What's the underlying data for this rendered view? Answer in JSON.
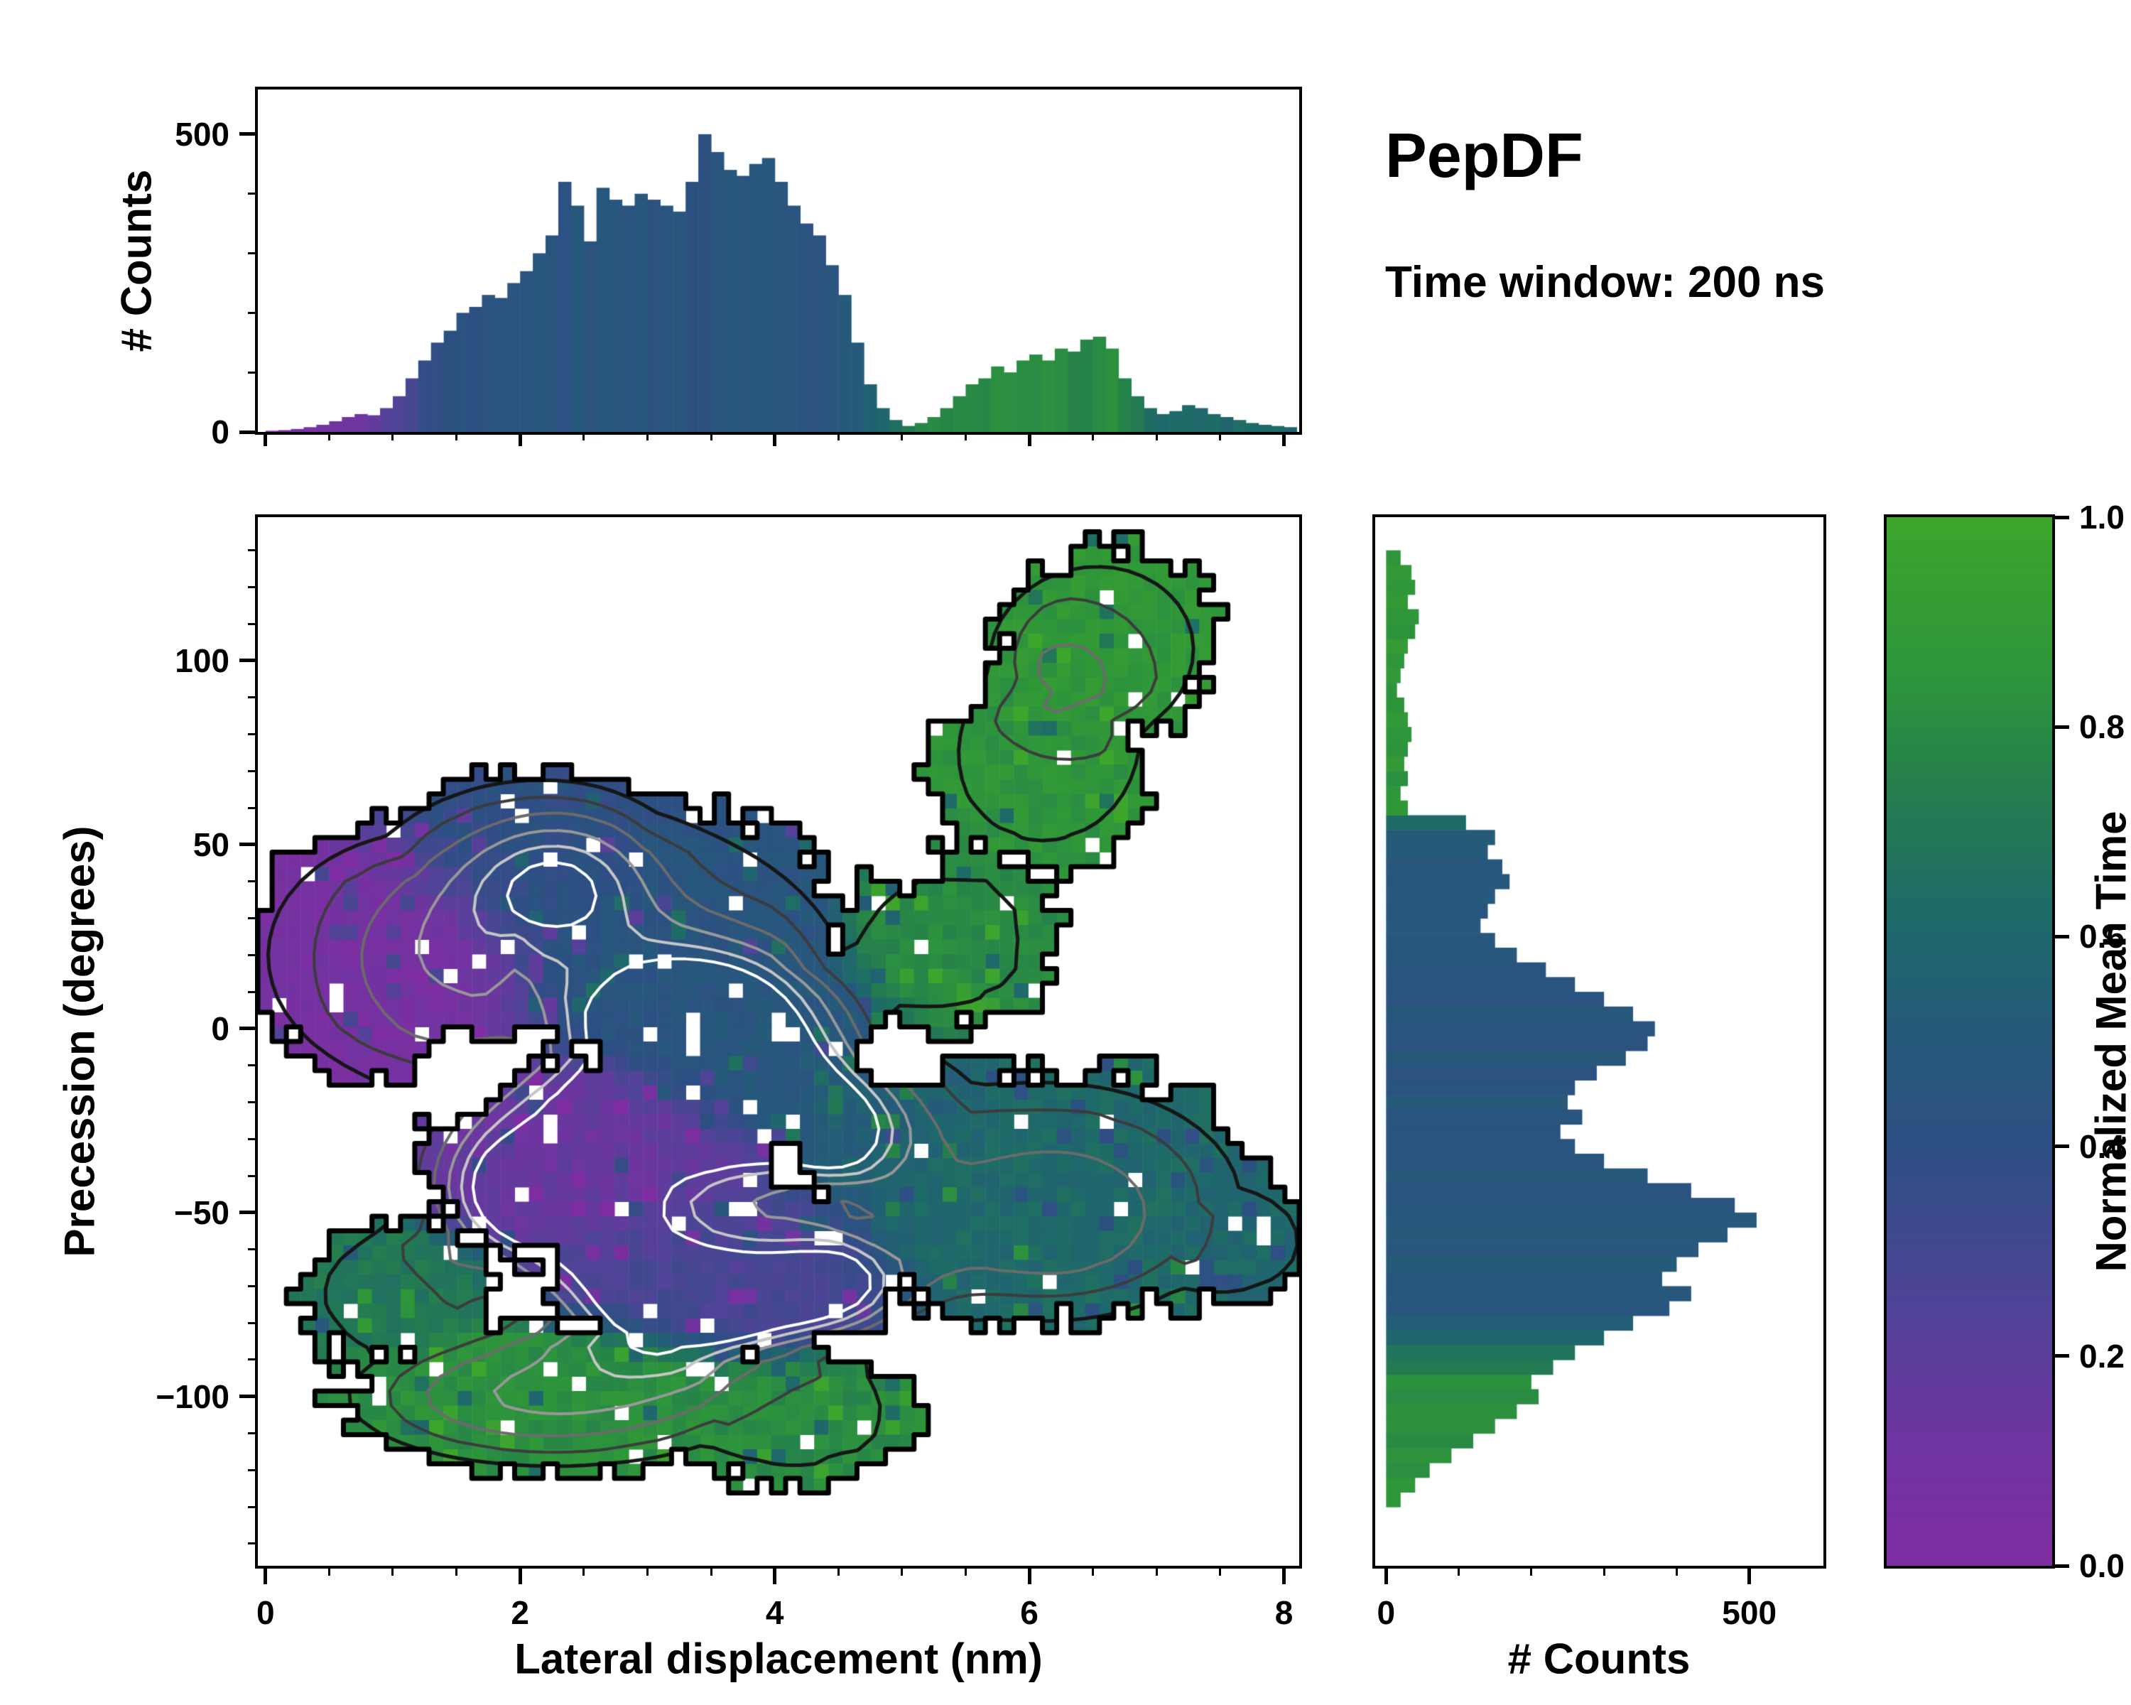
{
  "annotations": {
    "dataset_label": "PepDF",
    "time_window_label": "Time window: 200 ns"
  },
  "colormap": {
    "label": "Normalized Mean Time",
    "ticks": [
      "0.0",
      "0.2",
      "0.4",
      "0.6",
      "0.8",
      "1.0"
    ],
    "range": [
      0,
      1
    ],
    "stops": [
      [
        0.0,
        "#7f2da2"
      ],
      [
        0.12,
        "#6f35a0"
      ],
      [
        0.25,
        "#4f4497"
      ],
      [
        0.4,
        "#2d4f83"
      ],
      [
        0.52,
        "#255b79"
      ],
      [
        0.62,
        "#1e6a69"
      ],
      [
        0.72,
        "#237a52"
      ],
      [
        0.85,
        "#2e953a"
      ],
      [
        1.0,
        "#3ea52c"
      ]
    ]
  },
  "chart_data": [
    {
      "id": "top_histogram",
      "type": "bar",
      "orientation": "vertical",
      "title": "",
      "xlabel": "",
      "ylabel": "# Counts",
      "x_range": [
        -0.06,
        8.12
      ],
      "y_range": [
        0,
        575
      ],
      "yticks": [
        0,
        500
      ],
      "y_minor_step": 100,
      "xticks": [
        0,
        2,
        4,
        6,
        8
      ],
      "x_minor_step": 0.5,
      "bin_start": 0.0,
      "bin_width": 0.1,
      "values": [
        2,
        3,
        5,
        8,
        12,
        18,
        25,
        30,
        28,
        40,
        60,
        90,
        120,
        150,
        170,
        200,
        210,
        230,
        225,
        250,
        270,
        300,
        330,
        420,
        380,
        320,
        410,
        390,
        380,
        400,
        390,
        380,
        370,
        420,
        500,
        470,
        440,
        430,
        450,
        460,
        420,
        380,
        350,
        330,
        280,
        230,
        150,
        80,
        40,
        20,
        10,
        15,
        25,
        40,
        60,
        80,
        90,
        110,
        100,
        120,
        130,
        120,
        140,
        135,
        155,
        160,
        140,
        90,
        60,
        40,
        30,
        35,
        45,
        40,
        30,
        25,
        20,
        15,
        12,
        10,
        8
      ],
      "color_by": "normalized_mean_time",
      "color_profile": [
        [
          0,
          0.05
        ],
        [
          0.7,
          0.12
        ],
        [
          1.3,
          0.38
        ],
        [
          1.9,
          0.45
        ],
        [
          4.5,
          0.46
        ],
        [
          4.9,
          0.62
        ],
        [
          5.2,
          0.78
        ],
        [
          6.7,
          0.8
        ],
        [
          7.0,
          0.62
        ],
        [
          8.1,
          0.6
        ]
      ]
    },
    {
      "id": "precession_vs_displacement_map",
      "type": "heatmap",
      "title": "",
      "xlabel": "Lateral displacement (nm)",
      "ylabel": "Precession (degrees)",
      "x_range": [
        -0.06,
        8.12
      ],
      "y_range": [
        -146,
        139
      ],
      "xticks": [
        0,
        2,
        4,
        6,
        8
      ],
      "yticks": [
        -100,
        -50,
        0,
        50,
        100
      ],
      "x_minor_step": 0.5,
      "y_minor_step": 10,
      "grid_nx": 73,
      "grid_ny": 72,
      "value_name": "normalized_mean_time",
      "regions": [
        {
          "name": "purple-upper-left",
          "x": 1.0,
          "y": 20,
          "rx": 1.35,
          "ry": 38,
          "value": 0.07
        },
        {
          "name": "blue-upper",
          "x": 2.1,
          "y": 45,
          "rx": 1.4,
          "ry": 28,
          "value": 0.4
        },
        {
          "name": "blue-center",
          "x": 3.1,
          "y": 25,
          "rx": 1.6,
          "ry": 40,
          "value": 0.45
        },
        {
          "name": "purple-mid",
          "x": 2.6,
          "y": -35,
          "rx": 1.5,
          "ry": 30,
          "value": 0.15
        },
        {
          "name": "blue-core",
          "x": 3.9,
          "y": -5,
          "rx": 1.2,
          "ry": 30,
          "value": 0.48
        },
        {
          "name": "indigo-lower",
          "x": 3.6,
          "y": -65,
          "rx": 1.6,
          "ry": 28,
          "value": 0.28
        },
        {
          "name": "teal-right",
          "x": 6.1,
          "y": -45,
          "rx": 1.9,
          "ry": 38,
          "value": 0.62
        },
        {
          "name": "teal-bridge",
          "x": 4.9,
          "y": -25,
          "rx": 0.9,
          "ry": 25,
          "value": 0.55
        },
        {
          "name": "green-mid",
          "x": 5.4,
          "y": 25,
          "rx": 0.95,
          "ry": 28,
          "value": 0.8
        },
        {
          "name": "green-arm",
          "x": 6.1,
          "y": 70,
          "rx": 0.95,
          "ry": 30,
          "value": 0.85
        },
        {
          "name": "green-arm-top",
          "x": 6.6,
          "y": 105,
          "rx": 0.95,
          "ry": 28,
          "value": 0.87
        },
        {
          "name": "green-bottom",
          "x": 2.3,
          "y": -100,
          "rx": 1.9,
          "ry": 23,
          "value": 0.82
        },
        {
          "name": "green-bottom-right",
          "x": 4.2,
          "y": -106,
          "rx": 1.0,
          "ry": 20,
          "value": 0.8
        },
        {
          "name": "green-left-edge",
          "x": 1.0,
          "y": -72,
          "rx": 0.85,
          "ry": 20,
          "value": 0.7
        },
        {
          "name": "teal-tip",
          "x": 7.6,
          "y": -58,
          "rx": 0.75,
          "ry": 18,
          "value": 0.6
        }
      ],
      "voids": [
        {
          "x": 1.55,
          "y": -12,
          "rx": 0.38,
          "ry": 11
        },
        {
          "x": 5.0,
          "y": -8,
          "rx": 0.35,
          "ry": 9
        },
        {
          "x": 5.05,
          "y": 45,
          "rx": 0.25,
          "ry": 7
        }
      ],
      "density_peaks": [
        {
          "x": 3.5,
          "y": -5,
          "sx": 0.9,
          "sy": 26,
          "amp": 0.85
        },
        {
          "x": 2.3,
          "y": 40,
          "sx": 0.8,
          "sy": 20,
          "amp": 0.55
        },
        {
          "x": 2.15,
          "y": -48,
          "sx": 0.9,
          "sy": 22,
          "amp": 0.75
        },
        {
          "x": 3.3,
          "y": -75,
          "sx": 0.9,
          "sy": 18,
          "amp": 0.8
        },
        {
          "x": 4.35,
          "y": -28,
          "sx": 0.7,
          "sy": 16,
          "amp": 0.65
        },
        {
          "x": 4.5,
          "y": -70,
          "sx": 0.7,
          "sy": 15,
          "amp": 0.6
        },
        {
          "x": 2.9,
          "y": -15,
          "sx": 1.4,
          "sy": 40,
          "amp": 0.45
        },
        {
          "x": 6.2,
          "y": -50,
          "sx": 1.3,
          "sy": 30,
          "amp": 0.35
        },
        {
          "x": 2.2,
          "y": -100,
          "sx": 1.4,
          "sy": 16,
          "amp": 0.4
        },
        {
          "x": 6.3,
          "y": 95,
          "sx": 0.8,
          "sy": 25,
          "amp": 0.3
        },
        {
          "x": 1.2,
          "y": 20,
          "sx": 0.9,
          "sy": 30,
          "amp": 0.3
        }
      ],
      "contour_levels": [
        {
          "level": 0.3,
          "color": "#161616",
          "width": 5
        },
        {
          "level": 0.44,
          "color": "#3c3c3c",
          "width": 4
        },
        {
          "level": 0.56,
          "color": "#6b6b6b",
          "width": 4
        },
        {
          "level": 0.68,
          "color": "#989898",
          "width": 4
        },
        {
          "level": 0.79,
          "color": "#c6c6c6",
          "width": 4
        },
        {
          "level": 0.89,
          "color": "#ffffff",
          "width": 4
        }
      ],
      "outline": {
        "color": "#000000",
        "width": 7
      },
      "hole_fraction": 0.04,
      "edge_noise": 0.22,
      "value_jitter": 0.09,
      "mask_threshold": 0.34,
      "seed": 11
    },
    {
      "id": "right_histogram",
      "type": "bar",
      "orientation": "horizontal",
      "title": "",
      "xlabel": "# Counts",
      "ylabel": "",
      "x_range": [
        -15,
        602
      ],
      "xticks": [
        0,
        500
      ],
      "x_minor_step": 100,
      "y_range": [
        -146,
        139
      ],
      "bin_start": -130,
      "bin_width": 4,
      "values": [
        20,
        40,
        60,
        90,
        120,
        150,
        180,
        210,
        200,
        230,
        260,
        300,
        340,
        390,
        420,
        380,
        400,
        430,
        470,
        510,
        480,
        420,
        360,
        300,
        260,
        240,
        270,
        250,
        260,
        290,
        330,
        360,
        370,
        340,
        300,
        260,
        220,
        180,
        150,
        130,
        140,
        150,
        170,
        160,
        140,
        150,
        110,
        30,
        20,
        30,
        25,
        30,
        35,
        30,
        25,
        15,
        20,
        25,
        30,
        40,
        45,
        30,
        40,
        35,
        20
      ],
      "color_by": "normalized_mean_time",
      "color_profile": [
        [
          -130,
          0.85
        ],
        [
          -95,
          0.8
        ],
        [
          -84,
          0.58
        ],
        [
          -78,
          0.5
        ],
        [
          0,
          0.45
        ],
        [
          40,
          0.48
        ],
        [
          54,
          0.52
        ],
        [
          60,
          0.85
        ],
        [
          130,
          0.88
        ]
      ]
    },
    {
      "id": "colorbar",
      "type": "colorbar",
      "label": "Normalized Mean Time",
      "ticks": [
        "0.0",
        "0.2",
        "0.4",
        "0.6",
        "0.8",
        "1.0"
      ],
      "range": [
        0,
        1
      ]
    }
  ]
}
